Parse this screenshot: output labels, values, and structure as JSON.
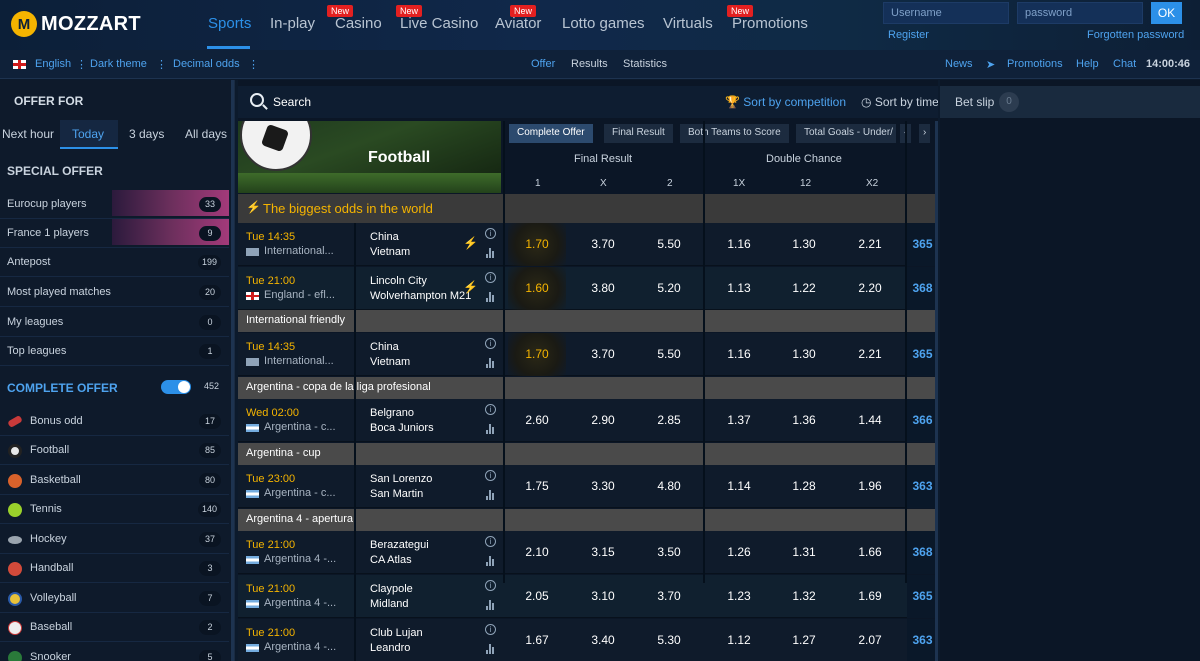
{
  "logo": {
    "mark": "M",
    "text": "MOZZART"
  },
  "nav": {
    "sports": "Sports",
    "inplay": "In-play",
    "casino": "Casino",
    "live_casino": "Live Casino",
    "aviator": "Aviator",
    "lotto": "Lotto games",
    "virtuals": "Virtuals",
    "promotions": "Promotions",
    "new_badge": "New"
  },
  "login": {
    "username_placeholder": "Username",
    "password_placeholder": "password",
    "ok": "OK",
    "register": "Register",
    "forgot": "Forgotten password"
  },
  "subbar": {
    "language": "English",
    "theme": "Dark theme",
    "odds": "Decimal odds",
    "offer": "Offer",
    "results": "Results",
    "statistics": "Statistics",
    "news": "News",
    "promotions": "Promotions",
    "help": "Help",
    "chat": "Chat",
    "clock": "14:00:46"
  },
  "sidebar": {
    "offer_for": "OFFER FOR",
    "time_tabs": [
      "Next hour",
      "Today",
      "3 days",
      "All days"
    ],
    "special_offer": "SPECIAL OFFER",
    "special_items": [
      {
        "label": "Eurocup players",
        "count": "33"
      },
      {
        "label": "France 1 players",
        "count": "9"
      },
      {
        "label": "Antepost",
        "count": "199"
      },
      {
        "label": "Most played matches",
        "count": "20"
      },
      {
        "label": "My leagues",
        "count": "0"
      },
      {
        "label": "Top leagues",
        "count": "1"
      }
    ],
    "complete_offer": "COMPLETE OFFER",
    "complete_count": "452",
    "sports": [
      {
        "label": "Bonus odd",
        "count": "17",
        "color": "#c83a3a"
      },
      {
        "label": "Football",
        "count": "85",
        "color": "#e8e8e8"
      },
      {
        "label": "Basketball",
        "count": "80",
        "color": "#d9622b"
      },
      {
        "label": "Tennis",
        "count": "140",
        "color": "#9ad12b"
      },
      {
        "label": "Hockey",
        "count": "37",
        "color": "#9aa4ae"
      },
      {
        "label": "Handball",
        "count": "3",
        "color": "#d24a3a"
      },
      {
        "label": "Volleyball",
        "count": "7",
        "color": "#e8c23a"
      },
      {
        "label": "Baseball",
        "count": "2",
        "color": "#eeeeee"
      },
      {
        "label": "Snooker",
        "count": "5",
        "color": "#2a7a3a"
      }
    ]
  },
  "main": {
    "search": "Search",
    "sort_competition": "Sort by competition",
    "sort_time": "Sort by time",
    "sport_title": "Football",
    "market_tabs": [
      "Complete Offer",
      "Final Result",
      "Both Teams to Score",
      "Total Goals - Under/"
    ],
    "groups": {
      "final_result": "Final Result",
      "double_chance": "Double Chance"
    },
    "columns": [
      "1",
      "X",
      "2",
      "1X",
      "12",
      "X2"
    ],
    "featured_banner": "The biggest odds in the world",
    "leagues": [
      "International friendly",
      "Argentina - copa de la liga profesional",
      "Argentina - cup",
      "Argentina 4 - apertura"
    ],
    "matches": [
      {
        "time": "Tue 14:35",
        "league": "International...",
        "home": "China",
        "away": "Vietnam",
        "odds": [
          "1.70",
          "3.70",
          "5.50",
          "1.16",
          "1.30",
          "2.21"
        ],
        "more": "365"
      },
      {
        "time": "Tue 21:00",
        "league": "England - efl...",
        "home": "Lincoln City",
        "away": "Wolverhampton M21",
        "odds": [
          "1.60",
          "3.80",
          "5.20",
          "1.13",
          "1.22",
          "2.20"
        ],
        "more": "368"
      },
      {
        "time": "Tue 14:35",
        "league": "International...",
        "home": "China",
        "away": "Vietnam",
        "odds": [
          "1.70",
          "3.70",
          "5.50",
          "1.16",
          "1.30",
          "2.21"
        ],
        "more": "365"
      },
      {
        "time": "Wed 02:00",
        "league": "Argentina - c...",
        "home": "Belgrano",
        "away": "Boca Juniors",
        "odds": [
          "2.60",
          "2.90",
          "2.85",
          "1.37",
          "1.36",
          "1.44"
        ],
        "more": "366"
      },
      {
        "time": "Tue 23:00",
        "league": "Argentina - c...",
        "home": "San Lorenzo",
        "away": "San Martin",
        "odds": [
          "1.75",
          "3.30",
          "4.80",
          "1.14",
          "1.28",
          "1.96"
        ],
        "more": "363"
      },
      {
        "time": "Tue 21:00",
        "league": "Argentina 4 -...",
        "home": "Berazategui",
        "away": "CA Atlas",
        "odds": [
          "2.10",
          "3.15",
          "3.50",
          "1.26",
          "1.31",
          "1.66"
        ],
        "more": "368"
      },
      {
        "time": "Tue 21:00",
        "league": "Argentina 4 -...",
        "home": "Claypole",
        "away": "Midland",
        "odds": [
          "2.05",
          "3.10",
          "3.70",
          "1.23",
          "1.32",
          "1.69"
        ],
        "more": "365"
      },
      {
        "time": "Tue 21:00",
        "league": "Argentina 4 -...",
        "home": "Club Lujan",
        "away": "Leandro",
        "odds": [
          "1.67",
          "3.40",
          "5.30",
          "1.12",
          "1.27",
          "2.07"
        ],
        "more": "363"
      }
    ]
  },
  "betslip": {
    "label": "Bet slip",
    "count": "0"
  }
}
